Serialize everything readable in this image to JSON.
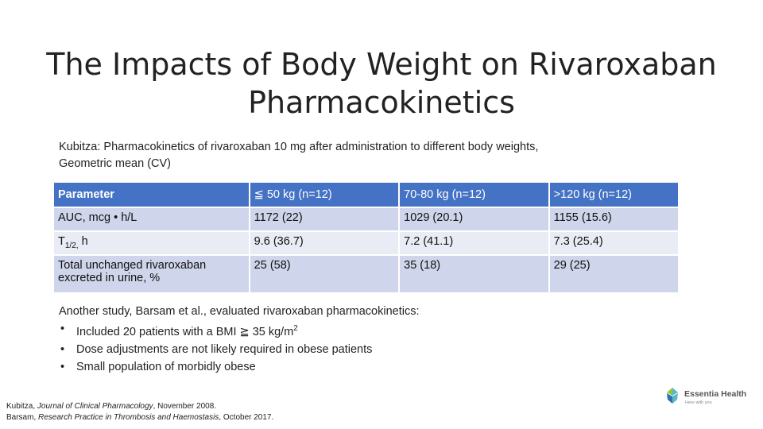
{
  "title": {
    "line1": "The Impacts of Body Weight on Rivaroxaban",
    "line2": "Pharmacokinetics"
  },
  "subtitle": {
    "line1": "Kubitza: Pharmacokinetics of rivaroxaban 10 mg after administration to different body weights,",
    "line2": "Geometric mean (CV)"
  },
  "table": {
    "headers": [
      "Parameter",
      "≦ 50 kg (n=12)",
      "70-80 kg (n=12)",
      ">120 kg (n=12)"
    ],
    "rows": [
      {
        "param": "AUC, mcg • h/L",
        "c1": "1172 (22)",
        "c2": "1029 (20.1)",
        "c3": "1155 (15.6)"
      },
      {
        "param_main": "T",
        "param_sub": "1/2,",
        "param_tail": " h",
        "c1": "9.6 (36.7)",
        "c2": "7.2 (41.1)",
        "c3": "7.3 (25.4)"
      },
      {
        "param_line1": "Total unchanged rivaroxaban",
        "param_line2": "excreted in urine, %",
        "c1": "25 (58)",
        "c2": "35 (18)",
        "c3": "29 (25)"
      }
    ]
  },
  "study": {
    "intro": "Another study, Barsam et al., evaluated rivaroxaban pharmacokinetics:",
    "bullet1_main": "Included 20 patients with a BMI ≧ 35 kg/m",
    "bullet1_sup": "2",
    "bullet2": "Dose adjustments are not likely required in obese patients",
    "bullet3": "Small population of morbidly obese"
  },
  "references": {
    "ref1_author": "Kubitza, ",
    "ref1_journal": "Journal of Clinical Pharmacology",
    "ref1_date": ", November 2008.",
    "ref2_author": "Barsam, ",
    "ref2_journal": "Research Practice in Thrombosis and Haemostasis",
    "ref2_date": ", October 2017."
  },
  "logo": {
    "name": "Essentia Health",
    "tagline": "Here with you",
    "colors": {
      "teal": "#5bb8c9",
      "green": "#8dc63f",
      "blue": "#2f6fb3"
    }
  },
  "colors": {
    "table_header": "#4472c4",
    "row_dark": "#cfd5ea",
    "row_light": "#e9ebf5"
  }
}
